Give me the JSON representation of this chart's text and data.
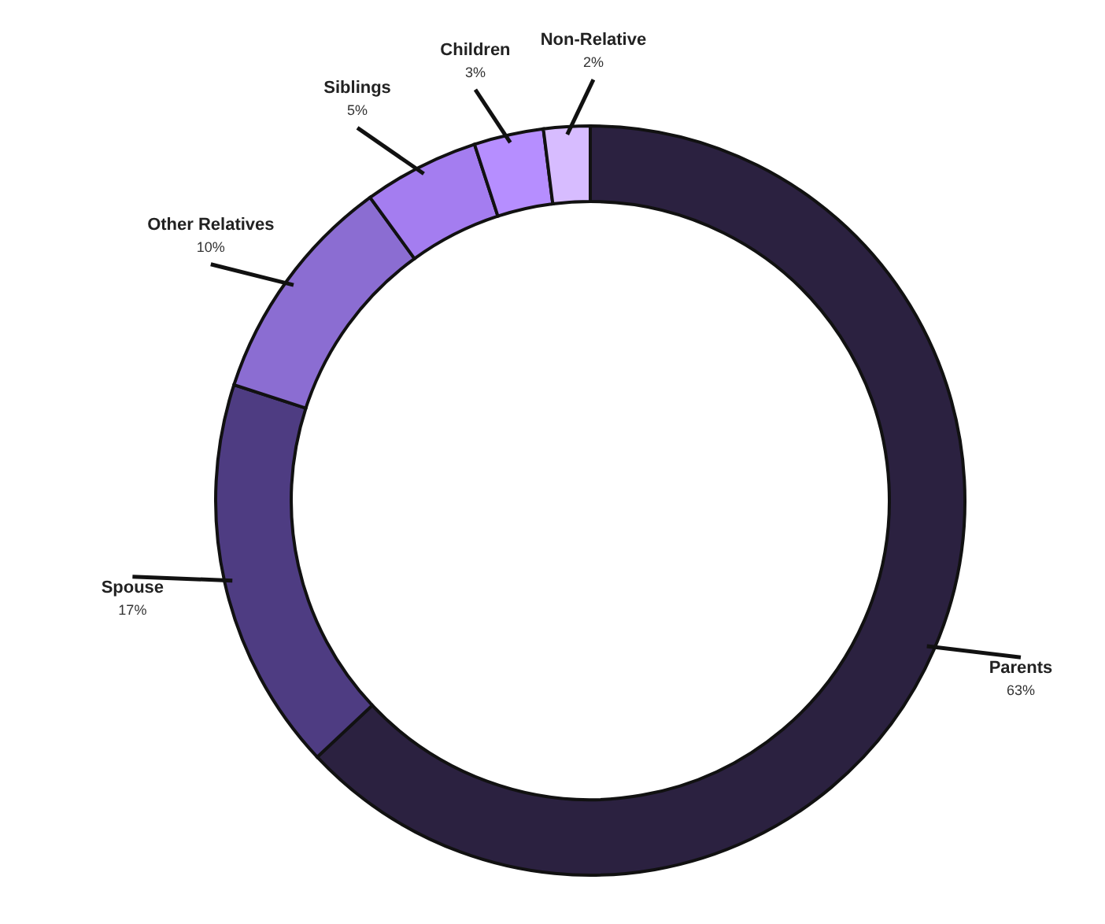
{
  "chart_data": {
    "type": "donut",
    "categories": [
      "Parents",
      "Spouse",
      "Other Relatives",
      "Siblings",
      "Children",
      "Non-Relative"
    ],
    "values": [
      63,
      17,
      10,
      5,
      3,
      2
    ],
    "colors": [
      "#2b2140",
      "#4e3c82",
      "#8b6dd2",
      "#a47df0",
      "#b68eff",
      "#d7bcff"
    ],
    "value_labels": [
      "63%",
      "17%",
      "10%",
      "5%",
      "3%",
      "2%"
    ]
  }
}
